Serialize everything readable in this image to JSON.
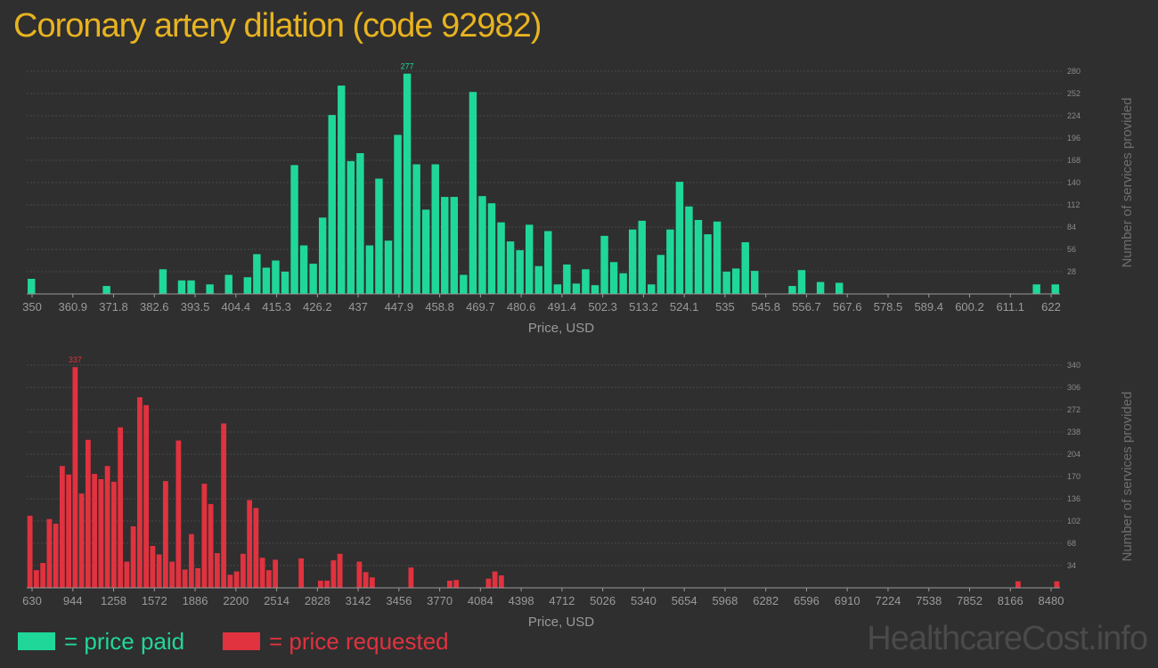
{
  "title": "Coronary artery dilation (code 92982)",
  "watermark": "HealthcareCost.info",
  "legend": {
    "paid": {
      "label": "= price paid",
      "color": "#20d79a"
    },
    "requested": {
      "label": "= price requested",
      "color": "#e0323f"
    }
  },
  "chart_data": [
    {
      "type": "bar",
      "title": "",
      "xlabel": "Price, USD",
      "ylabel": "Number of services provided",
      "color": "#20d79a",
      "ylim": [
        0,
        280
      ],
      "yticks": [
        28,
        56,
        84,
        112,
        140,
        168,
        196,
        224,
        252,
        280
      ],
      "xlim": [
        350,
        622
      ],
      "xticks": [
        "350",
        "360.9",
        "371.8",
        "382.6",
        "393.5",
        "404.4",
        "415.3",
        "426.2",
        "437",
        "447.9",
        "458.8",
        "469.7",
        "480.6",
        "491.4",
        "502.3",
        "513.2",
        "524.1",
        "535",
        "545.8",
        "556.7",
        "567.6",
        "578.5",
        "589.4",
        "600.2",
        "611.1",
        "622"
      ],
      "max_label": "277",
      "bin_start": 350,
      "bin_width": 2.72,
      "values": [
        19,
        0,
        0,
        0,
        0,
        0,
        0,
        0,
        10,
        0,
        0,
        0,
        0,
        0,
        31,
        0,
        17,
        17,
        0,
        12,
        0,
        24,
        0,
        21,
        50,
        33,
        42,
        28,
        162,
        61,
        38,
        96,
        225,
        262,
        167,
        177,
        61,
        145,
        67,
        200,
        277,
        163,
        106,
        163,
        122,
        122,
        24,
        254,
        123,
        114,
        90,
        66,
        55,
        87,
        35,
        79,
        12,
        37,
        13,
        31,
        11,
        73,
        40,
        26,
        81,
        92,
        12,
        49,
        81,
        141,
        110,
        93,
        75,
        91,
        28,
        32,
        65,
        29,
        0,
        0,
        0,
        10,
        30,
        0,
        15,
        0,
        14,
        0,
        0,
        0,
        0,
        0,
        0,
        0,
        0,
        0,
        0,
        0,
        0,
        0,
        0,
        0,
        0,
        0,
        0,
        0,
        0,
        12,
        0,
        12
      ]
    },
    {
      "type": "bar",
      "title": "",
      "xlabel": "Price, USD",
      "ylabel": "Number of services provided",
      "color": "#e0323f",
      "ylim": [
        0,
        340
      ],
      "yticks": [
        34,
        68,
        102,
        136,
        170,
        204,
        238,
        272,
        306,
        340
      ],
      "xlim": [
        630,
        8480
      ],
      "xticks": [
        "630",
        "944",
        "1258",
        "1572",
        "1886",
        "2200",
        "2514",
        "2828",
        "3142",
        "3456",
        "3770",
        "4084",
        "4398",
        "4712",
        "5026",
        "5340",
        "5654",
        "5968",
        "6282",
        "6596",
        "6910",
        "7224",
        "7538",
        "7852",
        "8166",
        "8480"
      ],
      "max_label": "337",
      "bin_start": 630,
      "bin_width": 78.5,
      "values": [
        110,
        27,
        38,
        105,
        98,
        186,
        173,
        337,
        144,
        226,
        174,
        166,
        186,
        162,
        245,
        40,
        94,
        291,
        279,
        64,
        51,
        163,
        40,
        225,
        28,
        82,
        30,
        159,
        128,
        53,
        251,
        20,
        25,
        52,
        134,
        122,
        46,
        27,
        43,
        0,
        0,
        0,
        45,
        0,
        0,
        11,
        11,
        42,
        52,
        0,
        0,
        40,
        24,
        16,
        0,
        0,
        0,
        0,
        0,
        31,
        0,
        0,
        0,
        0,
        0,
        11,
        12,
        0,
        0,
        0,
        0,
        14,
        25,
        19,
        0,
        0,
        0,
        0,
        0,
        0,
        0,
        0,
        0,
        0,
        0,
        0,
        0,
        0,
        0,
        0,
        0,
        0,
        0,
        0,
        0,
        0,
        0,
        0,
        0,
        0,
        0,
        0,
        0,
        0,
        0,
        0,
        0,
        0,
        0,
        0,
        0,
        0,
        0,
        0,
        0,
        0,
        0,
        0,
        0,
        0,
        0,
        0,
        0,
        0,
        0,
        0,
        0,
        0,
        0,
        0,
        0,
        0,
        0,
        0,
        0,
        0,
        0,
        0,
        0,
        0,
        0,
        0,
        0,
        0,
        0,
        0,
        0,
        0,
        0,
        0,
        0,
        0,
        0,
        10,
        0,
        0,
        0,
        0,
        0,
        10
      ]
    }
  ]
}
